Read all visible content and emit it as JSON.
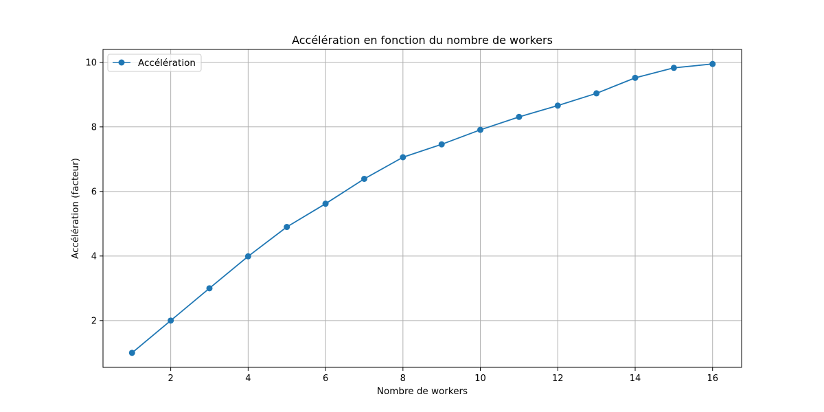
{
  "chart_data": {
    "type": "line",
    "title": "Accélération en fonction du nombre de workers",
    "xlabel": "Nombre de workers",
    "ylabel": "Accélération (facteur)",
    "x": [
      1,
      2,
      3,
      4,
      5,
      6,
      7,
      8,
      9,
      10,
      11,
      12,
      13,
      14,
      15,
      16
    ],
    "series": [
      {
        "name": "Accélération",
        "values": [
          1.0,
          2.0,
          3.0,
          3.99,
          4.9,
          5.62,
          6.39,
          7.06,
          7.46,
          7.91,
          8.31,
          8.66,
          9.04,
          9.52,
          9.83,
          9.95
        ],
        "color": "#1f77b4",
        "marker": "circle"
      }
    ],
    "xlim": [
      0.25,
      16.75
    ],
    "ylim": [
      0.55,
      10.4
    ],
    "xticks": [
      2,
      4,
      6,
      8,
      10,
      12,
      14,
      16
    ],
    "yticks": [
      2,
      4,
      6,
      8,
      10
    ],
    "grid": true,
    "legend_position": "top-left"
  }
}
